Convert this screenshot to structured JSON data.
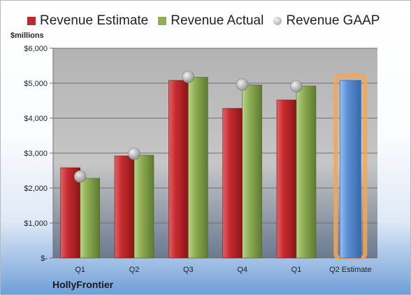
{
  "company": "HollyFrontier",
  "units": "$millions",
  "legend": [
    {
      "label": "Revenue Estimate",
      "color": "#c0282c"
    },
    {
      "label": "Revenue Actual",
      "color": "#8fae55"
    },
    {
      "label": "Revenue GAAP",
      "color": "#c8c8c8"
    }
  ],
  "chart_data": {
    "type": "bar",
    "title": "",
    "xlabel": "",
    "ylabel": "$millions",
    "ylim": [
      0,
      6000
    ],
    "y_ticks": [
      0,
      1000,
      2000,
      3000,
      4000,
      5000,
      6000
    ],
    "y_tick_labels": [
      "$-",
      "$1,000",
      "$2,000",
      "$3,000",
      "$4,000",
      "$5,000",
      "$6,000"
    ],
    "categories": [
      "Q1",
      "Q2",
      "Q3",
      "Q4",
      "Q1",
      "Q2 Estimate"
    ],
    "series": [
      {
        "name": "Revenue Estimate",
        "color": "#c0282c",
        "values": [
          2580,
          2920,
          5080,
          4280,
          4520,
          null
        ]
      },
      {
        "name": "Revenue Actual",
        "color": "#8fae55",
        "values": [
          2280,
          2940,
          5170,
          4950,
          4920,
          null
        ]
      },
      {
        "name": "Revenue GAAP",
        "type": "marker",
        "color": "#c8c8c8",
        "values": [
          2330,
          2980,
          5180,
          4960,
          4910,
          null
        ]
      }
    ],
    "estimate": {
      "category": "Q2 Estimate",
      "value": 5080,
      "color": "#5b8fd6",
      "highlight": "#f5a652"
    },
    "grid": true,
    "legend_position": "top"
  }
}
